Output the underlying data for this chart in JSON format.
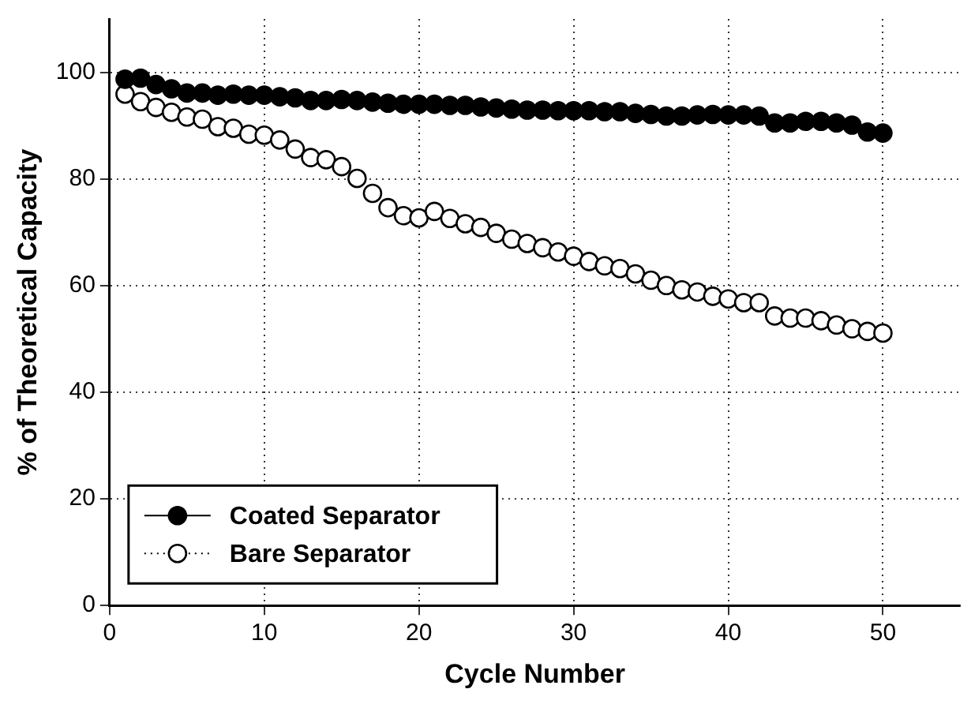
{
  "chart_data": {
    "type": "scatter",
    "xlabel": "Cycle Number",
    "ylabel": "% of Theoretical Capacity",
    "xlim": [
      0,
      55
    ],
    "xticks": [
      0,
      10,
      20,
      30,
      40,
      50
    ],
    "ylim": [
      0,
      110
    ],
    "yticks": [
      0,
      20,
      40,
      60,
      80,
      100
    ],
    "grid": true,
    "legend": "bottom left",
    "marker": "circle",
    "x": [
      1,
      2,
      3,
      4,
      5,
      6,
      7,
      8,
      9,
      10,
      11,
      12,
      13,
      14,
      15,
      16,
      17,
      18,
      19,
      20,
      21,
      22,
      23,
      24,
      25,
      26,
      27,
      28,
      29,
      30,
      31,
      32,
      33,
      34,
      35,
      36,
      37,
      38,
      39,
      40,
      41,
      42,
      43,
      44,
      45,
      46,
      47,
      48,
      49,
      50
    ],
    "series": [
      {
        "name": "Coated Separator",
        "color": "#000000",
        "line_style": "solid",
        "values": [
          98.7,
          98.9,
          97.7,
          96.9,
          96.1,
          96.1,
          95.7,
          95.9,
          95.7,
          95.7,
          95.4,
          95.2,
          94.7,
          94.7,
          94.9,
          94.7,
          94.4,
          94.2,
          94.0,
          94.0,
          94.0,
          93.8,
          93.8,
          93.5,
          93.3,
          93.1,
          92.9,
          92.9,
          92.8,
          92.8,
          92.8,
          92.6,
          92.6,
          92.3,
          92.1,
          91.8,
          91.8,
          92.0,
          92.1,
          92.0,
          92.0,
          91.8,
          90.5,
          90.5,
          90.8,
          90.8,
          90.5,
          90.1,
          88.8,
          88.6
        ]
      },
      {
        "name": "Bare Separator",
        "color": "#ffffff",
        "line_style": "dotted",
        "values": [
          95.9,
          94.5,
          93.4,
          92.5,
          91.6,
          91.2,
          89.8,
          89.5,
          88.4,
          88.2,
          87.3,
          85.6,
          84.0,
          83.6,
          82.3,
          80.1,
          77.3,
          74.6,
          73.1,
          72.7,
          73.9,
          72.6,
          71.6,
          70.9,
          69.8,
          68.7,
          67.9,
          67.1,
          66.3,
          65.5,
          64.5,
          63.7,
          63.2,
          62.2,
          61.0,
          60.0,
          59.2,
          58.8,
          58.0,
          57.5,
          56.8,
          56.8,
          54.3,
          53.9,
          53.9,
          53.4,
          52.6,
          51.9,
          51.4,
          51.1
        ]
      }
    ]
  }
}
